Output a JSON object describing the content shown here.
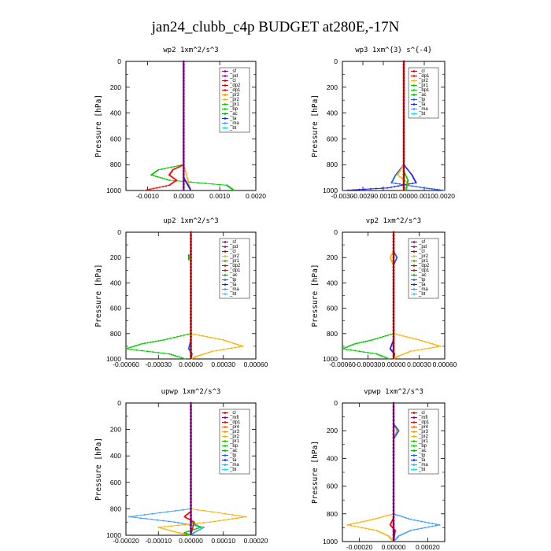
{
  "figure_title": "jan24_clubb_c4p  BUDGET at280E,-17N",
  "colors": {
    "bt": "#00e5ff",
    "ma": "#3aa0ff",
    "ta": "#1a1aff",
    "tp": "#1a5cff",
    "ac": "#00b400",
    "bp": "#00d800",
    "pr1": "#00cc00",
    "pr2": "#ffb000",
    "pr3": "#ff9000",
    "pr4": "#ff6000",
    "dp1": "#ff0000",
    "dp2": "#d00000",
    "cl": "#c00000",
    "pd": "#a000a0",
    "sf": "#800080",
    "mfl": "#800080"
  },
  "chart_data": [
    {
      "type": "line",
      "title": "wp2  1xm^2/s^3",
      "ylabel": "Pressure [hPa]",
      "xlim": [
        -0.0016,
        0.002
      ],
      "ylim": [
        1000,
        0
      ],
      "xticks": [
        -0.001,
        0.0,
        0.001,
        0.002
      ],
      "xtick_labels": [
        "-0.0010",
        "0.0000",
        "0.0010",
        "0.0020"
      ],
      "yticks": [
        0,
        200,
        400,
        600,
        800,
        1000
      ],
      "ytick_labels": [
        "0",
        "200",
        "400",
        "600",
        "800",
        "1000"
      ],
      "legend": [
        "_sf",
        "_pd",
        "_cl",
        "_dp2",
        "_dp1",
        "_pr3",
        "_pr2",
        "_pr1",
        "_bp",
        "_ac",
        "_ta",
        "_ma",
        "_bt"
      ],
      "series": [
        {
          "name": "_pr1",
          "color": "pr1",
          "p": [
            800,
            840,
            880,
            920,
            960,
            980,
            1000
          ],
          "x": [
            0,
            -0.0007,
            -0.0009,
            -0.0004,
            0.0012,
            0.0013,
            0.0014
          ]
        },
        {
          "name": "_dp1",
          "color": "dp1",
          "p": [
            800,
            840,
            880,
            920,
            960,
            1000
          ],
          "x": [
            0,
            -0.0003,
            -0.0004,
            -0.0002,
            -0.0004,
            -0.0011
          ]
        },
        {
          "name": "_pr2",
          "color": "pr2",
          "p": [
            800,
            900,
            960,
            1000
          ],
          "x": [
            0,
            0.0001,
            0.00015,
            0.0002
          ]
        },
        {
          "name": "_ta",
          "color": "ta",
          "p": [
            900,
            950,
            1000
          ],
          "x": [
            0,
            0.0001,
            0.0002
          ]
        },
        {
          "name": "_sf",
          "color": "sf",
          "p": [
            0,
            1000
          ],
          "x": [
            0,
            0
          ]
        }
      ]
    },
    {
      "type": "line",
      "title": "wp3  1xm^{3} s^{-4}",
      "ylabel": "Pressure [hPa]",
      "xlim": [
        -0.003,
        0.002
      ],
      "ylim": [
        1000,
        0
      ],
      "xticks": [
        -0.003,
        -0.002,
        -0.001,
        0.0,
        0.001,
        0.002
      ],
      "xtick_labels": [
        "-0.0030",
        "-0.0020",
        "-0.0010",
        "0.0000",
        "0.0010",
        "0.0020"
      ],
      "yticks": [
        0,
        200,
        400,
        600,
        800,
        1000
      ],
      "ytick_labels": [
        "0",
        "200",
        "400",
        "600",
        "800",
        "1000"
      ],
      "legend": [
        "_cl",
        "_dp1",
        "_pr2",
        "_pr1",
        "_bp1",
        "_ac",
        "_tp",
        "_ta",
        "_ma",
        "_bt"
      ],
      "series": [
        {
          "name": "_ta",
          "color": "ta",
          "p": [
            800,
            880,
            940,
            980,
            1000
          ],
          "x": [
            0,
            0.0004,
            0.0006,
            -0.0008,
            -0.003
          ]
        },
        {
          "name": "_tp",
          "color": "tp",
          "p": [
            800,
            880,
            940,
            980,
            1000
          ],
          "x": [
            0,
            -0.0004,
            -0.0006,
            0.001,
            0.002
          ]
        },
        {
          "name": "_pr2",
          "color": "pr2",
          "p": [
            800,
            880,
            940,
            1000
          ],
          "x": [
            0,
            -0.0003,
            0.0002,
            0.0001
          ]
        },
        {
          "name": "_pr1",
          "color": "pr1",
          "p": [
            850,
            920,
            1000
          ],
          "x": [
            0,
            0.0002,
            0.0001
          ]
        },
        {
          "name": "_cl",
          "color": "cl",
          "p": [
            0,
            1000
          ],
          "x": [
            0,
            0
          ]
        }
      ]
    },
    {
      "type": "line",
      "title": "up2  1xm^2/s^3",
      "ylabel": "Pressure [hPa]",
      "xlim": [
        -0.0006,
        0.0006
      ],
      "ylim": [
        1000,
        0
      ],
      "xticks": [
        -0.0006,
        -0.0003,
        0.0,
        0.0003,
        0.0006
      ],
      "xtick_labels": [
        "-0.00060",
        "-0.00030",
        "0.00000",
        "0.00030",
        "0.00060"
      ],
      "yticks": [
        0,
        200,
        400,
        600,
        800,
        1000
      ],
      "ytick_labels": [
        "0",
        "200",
        "400",
        "600",
        "800",
        "1000"
      ],
      "legend": [
        "_sf",
        "_pd",
        "_cl",
        "_pr2",
        "_pr1",
        "_dp2",
        "_dp1",
        "_ac",
        "_tp",
        "_ta",
        "_ma",
        "_bt"
      ],
      "series": [
        {
          "name": "_dp2",
          "color": "ac",
          "p": [
            180,
            220
          ],
          "x": [
            -2e-05,
            -2e-05
          ]
        },
        {
          "name": "_pr1",
          "color": "pr1",
          "p": [
            800,
            850,
            880,
            920,
            960,
            1000
          ],
          "x": [
            0,
            -0.00025,
            -0.00045,
            -0.0006,
            -0.0002,
            -5e-05
          ]
        },
        {
          "name": "_pr2",
          "color": "pr2",
          "p": [
            800,
            850,
            900,
            940,
            980,
            1000
          ],
          "x": [
            0,
            0.0003,
            0.00048,
            0.0002,
            5e-05,
            0.0
          ]
        },
        {
          "name": "_tp",
          "color": "tp",
          "p": [
            850,
            920,
            960,
            1000
          ],
          "x": [
            0,
            -2e-05,
            1e-05,
            0
          ]
        },
        {
          "name": "_sf",
          "color": "cl",
          "p": [
            0,
            1000
          ],
          "x": [
            0,
            0
          ]
        }
      ]
    },
    {
      "type": "line",
      "title": "vp2  1xm^2/s^3",
      "ylabel": "Pressure [hPa]",
      "xlim": [
        -0.0006,
        0.0006
      ],
      "ylim": [
        1000,
        0
      ],
      "xticks": [
        -0.0006,
        -0.0003,
        0.0,
        0.0003,
        0.0006
      ],
      "xtick_labels": [
        "-0.00060",
        "-0.00030",
        "0.00000",
        "0.00030",
        "0.00060"
      ],
      "yticks": [
        0,
        200,
        400,
        600,
        800,
        1000
      ],
      "ytick_labels": [
        "0",
        "200",
        "400",
        "600",
        "800",
        "1000"
      ],
      "legend": [
        "_sf",
        "_pd",
        "_cl",
        "_pr2",
        "_pr1",
        "_dp2",
        "_dp1",
        "_ac",
        "_tp",
        "_ta",
        "_ma",
        "_bt"
      ],
      "series": [
        {
          "name": "_pr2",
          "color": "pr2",
          "p": [
            150,
            200,
            260
          ],
          "x": [
            0,
            -4e-05,
            0
          ]
        },
        {
          "name": "_tp",
          "color": "tp",
          "p": [
            150,
            200,
            260
          ],
          "x": [
            0,
            4e-05,
            0
          ]
        },
        {
          "name": "_pr1",
          "color": "pr1",
          "p": [
            800,
            850,
            880,
            920,
            960,
            1000
          ],
          "x": [
            0,
            -0.00025,
            -0.00045,
            -0.0006,
            -0.0002,
            -5e-05
          ]
        },
        {
          "name": "_pr2",
          "color": "pr2",
          "p": [
            800,
            850,
            900,
            940,
            980,
            1000
          ],
          "x": [
            0,
            0.0003,
            0.00055,
            0.0002,
            5e-05,
            0.0
          ]
        },
        {
          "name": "_ta",
          "color": "ta",
          "p": [
            850,
            920,
            960,
            1000
          ],
          "x": [
            0,
            -4e-05,
            1e-05,
            0
          ]
        },
        {
          "name": "_sf",
          "color": "cl",
          "p": [
            0,
            1000
          ],
          "x": [
            0,
            0
          ]
        }
      ]
    },
    {
      "type": "line",
      "title": "upwp  1xm^2/s^3",
      "ylabel": "Pressure [hPa]",
      "xlim": [
        -0.0002,
        0.0002
      ],
      "ylim": [
        1000,
        0
      ],
      "xticks": [
        -0.0002,
        -0.0001,
        0.0,
        0.0001,
        0.0002
      ],
      "xtick_labels": [
        "-0.00020",
        "-0.00010",
        "0.00000",
        "0.00010",
        "0.00020"
      ],
      "yticks": [
        0,
        200,
        400,
        600,
        800,
        1000
      ],
      "ytick_labels": [
        "0",
        "200",
        "400",
        "600",
        "800",
        "1000"
      ],
      "legend": [
        "_cl",
        "_mfl",
        "_dp1",
        "_pr4",
        "_pr3",
        "_pr2",
        "_pr1",
        "_bp",
        "_ac",
        "_tp",
        "_ta",
        "_ma",
        "_bt"
      ],
      "series": [
        {
          "name": "_ma",
          "color": "ma",
          "p": [
            800,
            860,
            900,
            940,
            980,
            1000
          ],
          "x": [
            0,
            -0.00019,
            -5e-05,
            4e-05,
            1e-05,
            0
          ]
        },
        {
          "name": "_pr2",
          "color": "pr2",
          "p": [
            800,
            860,
            900,
            940,
            980,
            1000
          ],
          "x": [
            0,
            0.00017,
            6e-05,
            -0.0001,
            -4e-05,
            0
          ]
        },
        {
          "name": "_pr1",
          "color": "pr1",
          "p": [
            900,
            940,
            980,
            1000
          ],
          "x": [
            0,
            3e-05,
            -2e-05,
            0
          ]
        },
        {
          "name": "_dp1",
          "color": "dp1",
          "p": [
            820,
            860,
            900,
            1000
          ],
          "x": [
            0,
            -2e-05,
            1e-05,
            0
          ]
        },
        {
          "name": "_cl",
          "color": "sf",
          "p": [
            0,
            1000
          ],
          "x": [
            0,
            0
          ]
        }
      ]
    },
    {
      "type": "line",
      "title": "vpwp  1xm^2/s^3",
      "ylabel": "Pressure [hPa]",
      "xlim": [
        -0.0003,
        0.0003
      ],
      "ylim": [
        1000,
        0
      ],
      "xticks": [
        -0.0002,
        0.0,
        0.0002
      ],
      "xtick_labels": [
        "-0.00020",
        "0.00000",
        "0.00020"
      ],
      "yticks": [
        0,
        200,
        400,
        600,
        800,
        1000
      ],
      "ytick_labels": [
        "0",
        "200",
        "400",
        "600",
        "800",
        "1000"
      ],
      "legend": [
        "_cl",
        "_mfl",
        "_dp1",
        "_pr4",
        "_pr3",
        "_pr2",
        "_pr1",
        "_bp",
        "_ac",
        "_tp",
        "_ta",
        "_ma",
        "_bt"
      ],
      "series": [
        {
          "name": "_pr3",
          "color": "pr2",
          "p": [
            150,
            200,
            260
          ],
          "x": [
            0,
            2e-05,
            0
          ]
        },
        {
          "name": "_tp",
          "color": "tp",
          "p": [
            150,
            200,
            260
          ],
          "x": [
            0,
            3e-05,
            0
          ]
        },
        {
          "name": "_ma",
          "color": "ma",
          "p": [
            800,
            840,
            880,
            920,
            960,
            1000
          ],
          "x": [
            0,
            0.0001,
            0.00027,
            0.0001,
            3e-05,
            0
          ]
        },
        {
          "name": "_pr2",
          "color": "pr2",
          "p": [
            800,
            840,
            880,
            920,
            960,
            1000
          ],
          "x": [
            0,
            -0.00012,
            -0.00027,
            -0.0001,
            -3e-05,
            0
          ]
        },
        {
          "name": "_dp1",
          "color": "dp1",
          "p": [
            830,
            880,
            920,
            1000
          ],
          "x": [
            0,
            -2e-05,
            1e-05,
            0
          ]
        },
        {
          "name": "_cl",
          "color": "sf",
          "p": [
            0,
            1000
          ],
          "x": [
            0,
            0
          ]
        }
      ]
    }
  ]
}
